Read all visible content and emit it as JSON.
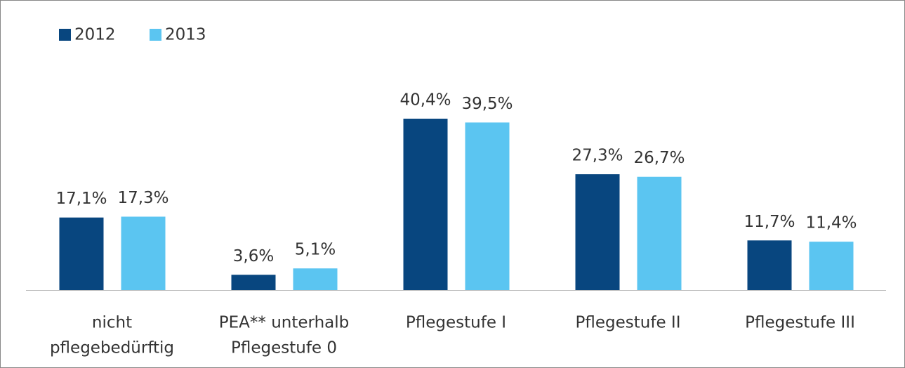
{
  "chart_data": {
    "type": "bar",
    "categories": [
      [
        "nicht",
        "pflegebedürftig"
      ],
      [
        "PEA** unterhalb",
        "Pflegestufe 0"
      ],
      [
        "Pflegestufe I"
      ],
      [
        "Pflegestufe II"
      ],
      [
        "Pflegestufe III"
      ]
    ],
    "series": [
      {
        "name": "2012",
        "color": "#08467f",
        "values": [
          17.1,
          3.6,
          40.4,
          27.3,
          11.7
        ],
        "value_labels": [
          "17,1%",
          "3,6%",
          "40,4%",
          "27,3%",
          "11,7%"
        ]
      },
      {
        "name": "2013",
        "color": "#5bc5f1",
        "values": [
          17.3,
          5.1,
          39.5,
          26.7,
          11.4
        ],
        "value_labels": [
          "17,3%",
          "5,1%",
          "39,5%",
          "26,7%",
          "11,4%"
        ]
      }
    ],
    "legend": "top-left"
  }
}
